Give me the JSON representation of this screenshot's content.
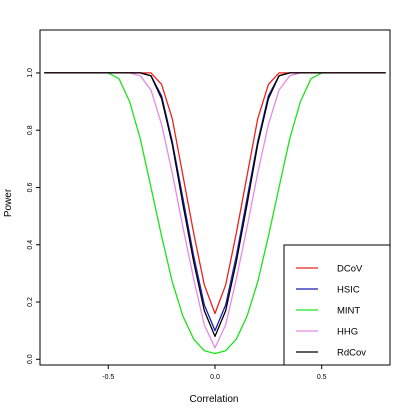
{
  "chart_data": {
    "type": "line",
    "title": "",
    "xlabel": "Correlation",
    "ylabel": "Power",
    "xlim": [
      -0.82,
      0.82
    ],
    "ylim": [
      -0.02,
      1.15
    ],
    "x_ticks": [
      -0.5,
      0.0,
      0.5
    ],
    "x_tick_labels": [
      "-0.5",
      "0.0",
      "0.5"
    ],
    "y_ticks": [
      0.0,
      0.2,
      0.4,
      0.6,
      0.8,
      1.0
    ],
    "y_tick_labels": [
      "0.0",
      "0.2",
      "0.4",
      "0.6",
      "0.8",
      "1.0"
    ],
    "grid": false,
    "legend_position": "bottom-right",
    "x": [
      -0.8,
      -0.5,
      -0.45,
      -0.4,
      -0.35,
      -0.3,
      -0.25,
      -0.2,
      -0.15,
      -0.1,
      -0.05,
      0.0,
      0.05,
      0.1,
      0.15,
      0.2,
      0.25,
      0.3,
      0.35,
      0.4,
      0.45,
      0.5,
      0.8
    ],
    "series": [
      {
        "name": "DCoV",
        "color": "#e8241c",
        "values": [
          1,
          1,
          1,
          1,
          1,
          1,
          0.96,
          0.84,
          0.64,
          0.44,
          0.26,
          0.16,
          0.26,
          0.44,
          0.64,
          0.84,
          0.96,
          1,
          1,
          1,
          1,
          1,
          1
        ]
      },
      {
        "name": "HSIC",
        "color": "#1a1ab0",
        "values": [
          1,
          1,
          1,
          1,
          1,
          0.99,
          0.92,
          0.76,
          0.56,
          0.36,
          0.19,
          0.1,
          0.19,
          0.36,
          0.56,
          0.76,
          0.92,
          0.99,
          1,
          1,
          1,
          1,
          1
        ]
      },
      {
        "name": "MINT",
        "color": "#1de31d",
        "values": [
          1,
          1,
          0.98,
          0.9,
          0.77,
          0.6,
          0.43,
          0.27,
          0.15,
          0.07,
          0.03,
          0.02,
          0.03,
          0.07,
          0.15,
          0.27,
          0.43,
          0.6,
          0.77,
          0.9,
          0.98,
          1,
          1
        ]
      },
      {
        "name": "HHG",
        "color": "#e58be6",
        "values": [
          1,
          1,
          1,
          1,
          0.99,
          0.94,
          0.82,
          0.65,
          0.46,
          0.28,
          0.12,
          0.04,
          0.12,
          0.28,
          0.46,
          0.65,
          0.82,
          0.94,
          0.99,
          1,
          1,
          1,
          1
        ]
      },
      {
        "name": "RdCov",
        "color": "#000000",
        "values": [
          1,
          1,
          1,
          1,
          1,
          0.99,
          0.91,
          0.75,
          0.54,
          0.34,
          0.17,
          0.08,
          0.17,
          0.34,
          0.54,
          0.75,
          0.91,
          0.99,
          1,
          1,
          1,
          1,
          1
        ]
      }
    ]
  }
}
